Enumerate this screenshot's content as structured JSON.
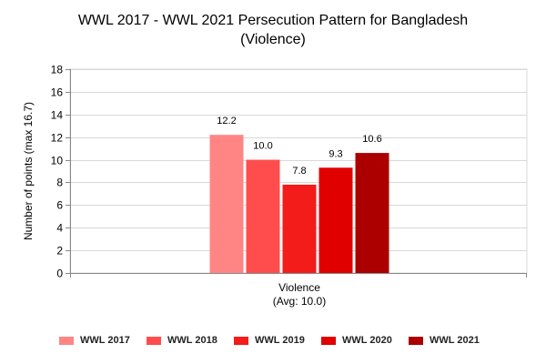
{
  "title": {
    "line1": "WWL 2017 - WWL 2021 Persecution Pattern for Bangladesh",
    "line2": "(Violence)"
  },
  "chart_data": {
    "type": "bar",
    "title": "WWL 2017 - WWL 2021 Persecution Pattern for Bangladesh (Violence)",
    "ylabel": "Number of points (max 16.7)",
    "xlabel": "",
    "ylim": [
      0,
      18
    ],
    "y_ticks": [
      "0",
      "2",
      "4",
      "6",
      "8",
      "10",
      "12",
      "14",
      "16",
      "18"
    ],
    "grid": true,
    "legend_position": "bottom",
    "categories": [
      "Violence"
    ],
    "category_labels": [
      [
        "Violence",
        "(Avg: 10.0)"
      ]
    ],
    "series": [
      {
        "name": "WWL 2017",
        "values": [
          12.2
        ],
        "labels": [
          "12.2"
        ],
        "color": "#ff8585"
      },
      {
        "name": "WWL 2018",
        "values": [
          10.0
        ],
        "labels": [
          "10.0"
        ],
        "color": "#ff4d4d"
      },
      {
        "name": "WWL 2019",
        "values": [
          7.8
        ],
        "labels": [
          "7.8"
        ],
        "color": "#f41b1b"
      },
      {
        "name": "WWL 2020",
        "values": [
          9.3
        ],
        "labels": [
          "9.3"
        ],
        "color": "#e00000"
      },
      {
        "name": "WWL 2021",
        "values": [
          10.6
        ],
        "labels": [
          "10.6"
        ],
        "color": "#ac0000"
      }
    ]
  }
}
